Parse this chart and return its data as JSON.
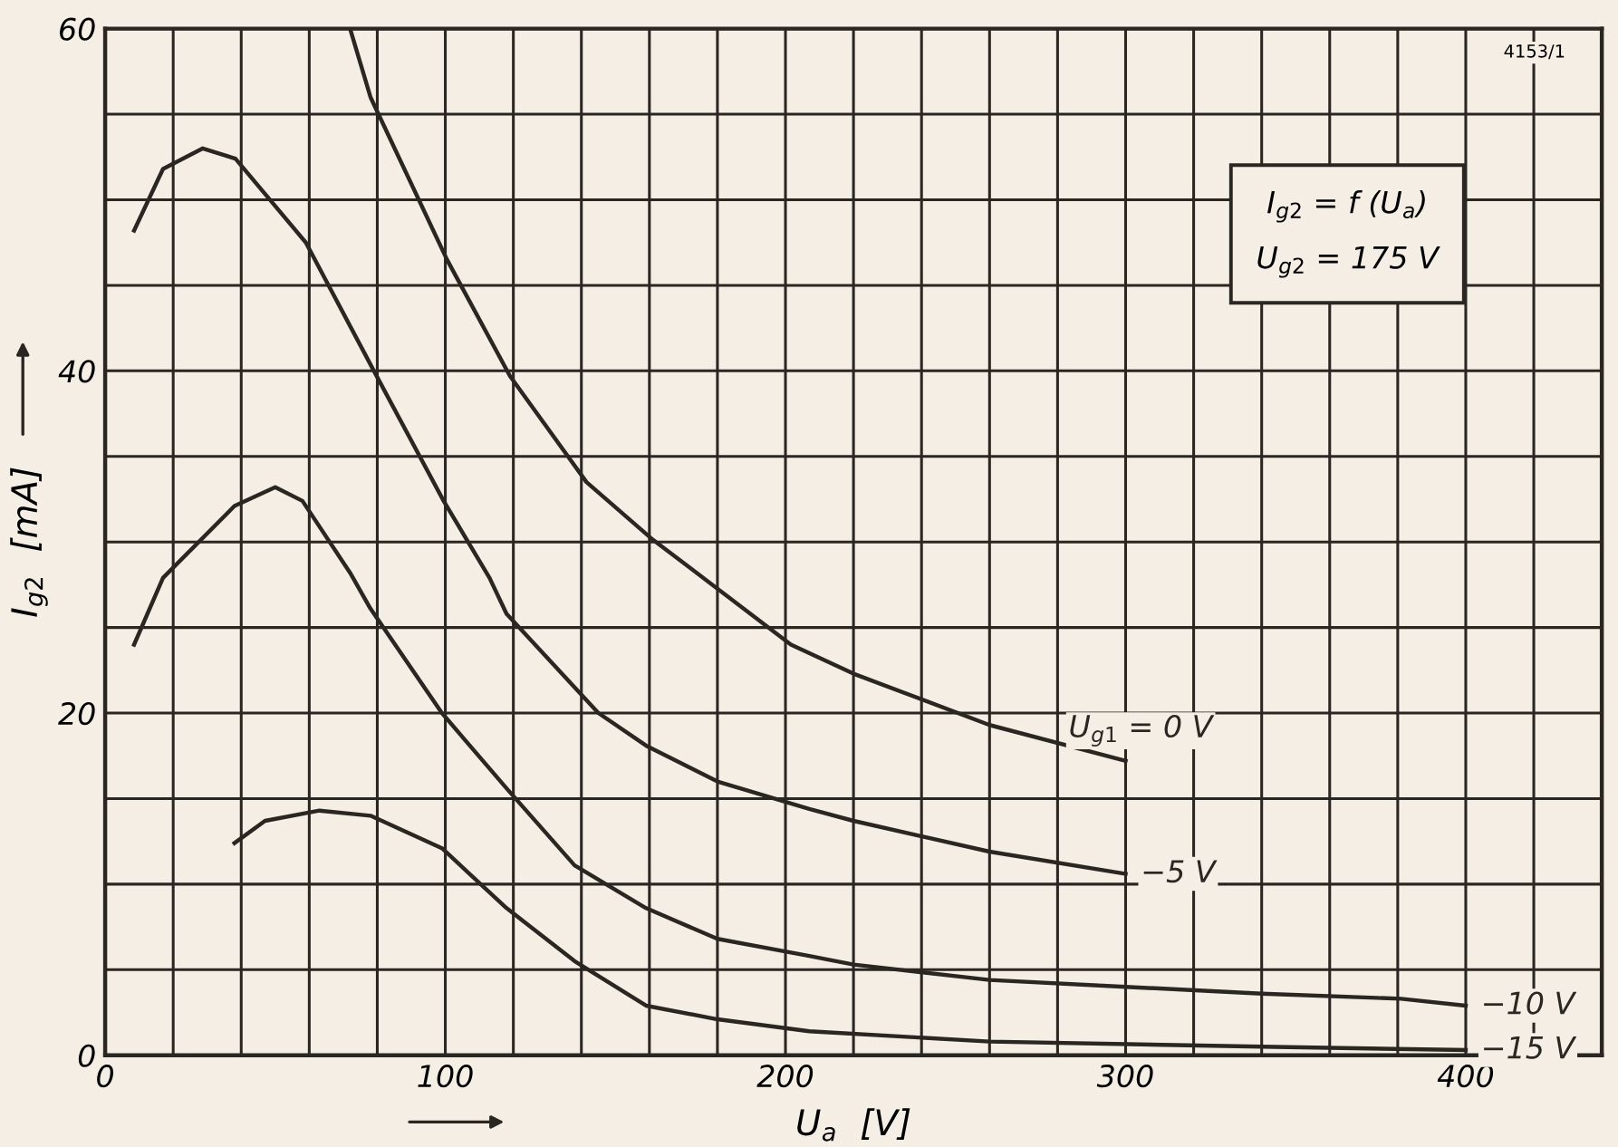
{
  "chart_data": {
    "type": "line",
    "xlabel": "U$_{a}$  [V]",
    "ylabel": "I$_{g2}$  [mA]",
    "xlim": [
      0,
      440
    ],
    "ylim": [
      0,
      60
    ],
    "xticks": [
      0,
      {
        "value": 20,
        "label": null
      },
      {
        "value": 40,
        "label": null
      },
      {
        "value": 60,
        "label": null
      },
      {
        "value": 80,
        "label": null
      },
      100,
      {
        "value": 120,
        "label": null
      },
      {
        "value": 140,
        "label": null
      },
      {
        "value": 160,
        "label": null
      },
      {
        "value": 180,
        "label": null
      },
      200,
      {
        "value": 220,
        "label": null
      },
      {
        "value": 240,
        "label": null
      },
      {
        "value": 260,
        "label": null
      },
      {
        "value": 280,
        "label": null
      },
      300,
      {
        "value": 320,
        "label": null
      },
      {
        "value": 340,
        "label": null
      },
      {
        "value": 360,
        "label": null
      },
      {
        "value": 380,
        "label": null
      },
      400,
      {
        "value": 420,
        "label": null
      }
    ],
    "yticks": [
      0,
      {
        "value": 5,
        "label": null
      },
      {
        "value": 10,
        "label": null
      },
      {
        "value": 15,
        "label": null
      },
      20,
      {
        "value": 25,
        "label": null
      },
      {
        "value": 30,
        "label": null
      },
      {
        "value": 35,
        "label": null
      },
      40,
      {
        "value": 45,
        "label": null
      },
      {
        "value": 50,
        "label": null
      },
      {
        "value": 55,
        "label": null
      },
      60
    ],
    "grid": true,
    "marker": "none",
    "line_style": "solid",
    "legend": false,
    "annotations": [
      "I$_{g2}$ = f (U$_{a}$)",
      "U$_{g2}$ = 175 V",
      "4153/1"
    ],
    "series": [
      {
        "name": "U$_{g1}$ = 0 V",
        "color": "#2a2622",
        "x": [
          72,
          78,
          100.5,
          119,
          141.5,
          160.6,
          201.6,
          220,
          260,
          300
        ],
        "values": [
          60,
          56,
          46.5,
          39.7,
          33.5,
          30.2,
          24,
          22.3,
          19.3,
          17.2
        ]
      },
      {
        "name": "−5 V",
        "color": "#2a2622",
        "x": [
          8.5,
          17,
          28.7,
          38.3,
          59,
          79,
          99.5,
          113,
          118,
          145,
          159,
          180,
          207,
          220,
          260,
          300
        ],
        "values": [
          48.2,
          51.8,
          53,
          52.4,
          47.5,
          40,
          32.4,
          27.9,
          25.8,
          20,
          18.1,
          16,
          14.4,
          13.7,
          11.9,
          10.6
        ]
      },
      {
        "name": "−10 V",
        "color": "#2a2622",
        "x": [
          8.5,
          17,
          38,
          50,
          58,
          72,
          78,
          99,
          118,
          138,
          159,
          180,
          207,
          220,
          260,
          300,
          340,
          381,
          400
        ],
        "values": [
          24,
          27.9,
          32.1,
          33.2,
          32.4,
          28.2,
          26.1,
          20,
          15.6,
          11.1,
          8.6,
          6.8,
          5.8,
          5.3,
          4.4,
          4.0,
          3.6,
          3.3,
          2.9
        ]
      },
      {
        "name": "−15 V",
        "color": "#2a2622",
        "x": [
          38,
          47,
          63,
          78,
          99,
          118,
          138,
          159,
          180,
          207,
          260,
          340,
          400
        ],
        "values": [
          12.4,
          13.7,
          14.3,
          14.0,
          12.1,
          8.6,
          5.5,
          2.9,
          2.1,
          1.4,
          0.8,
          0.5,
          0.3
        ]
      }
    ]
  }
}
